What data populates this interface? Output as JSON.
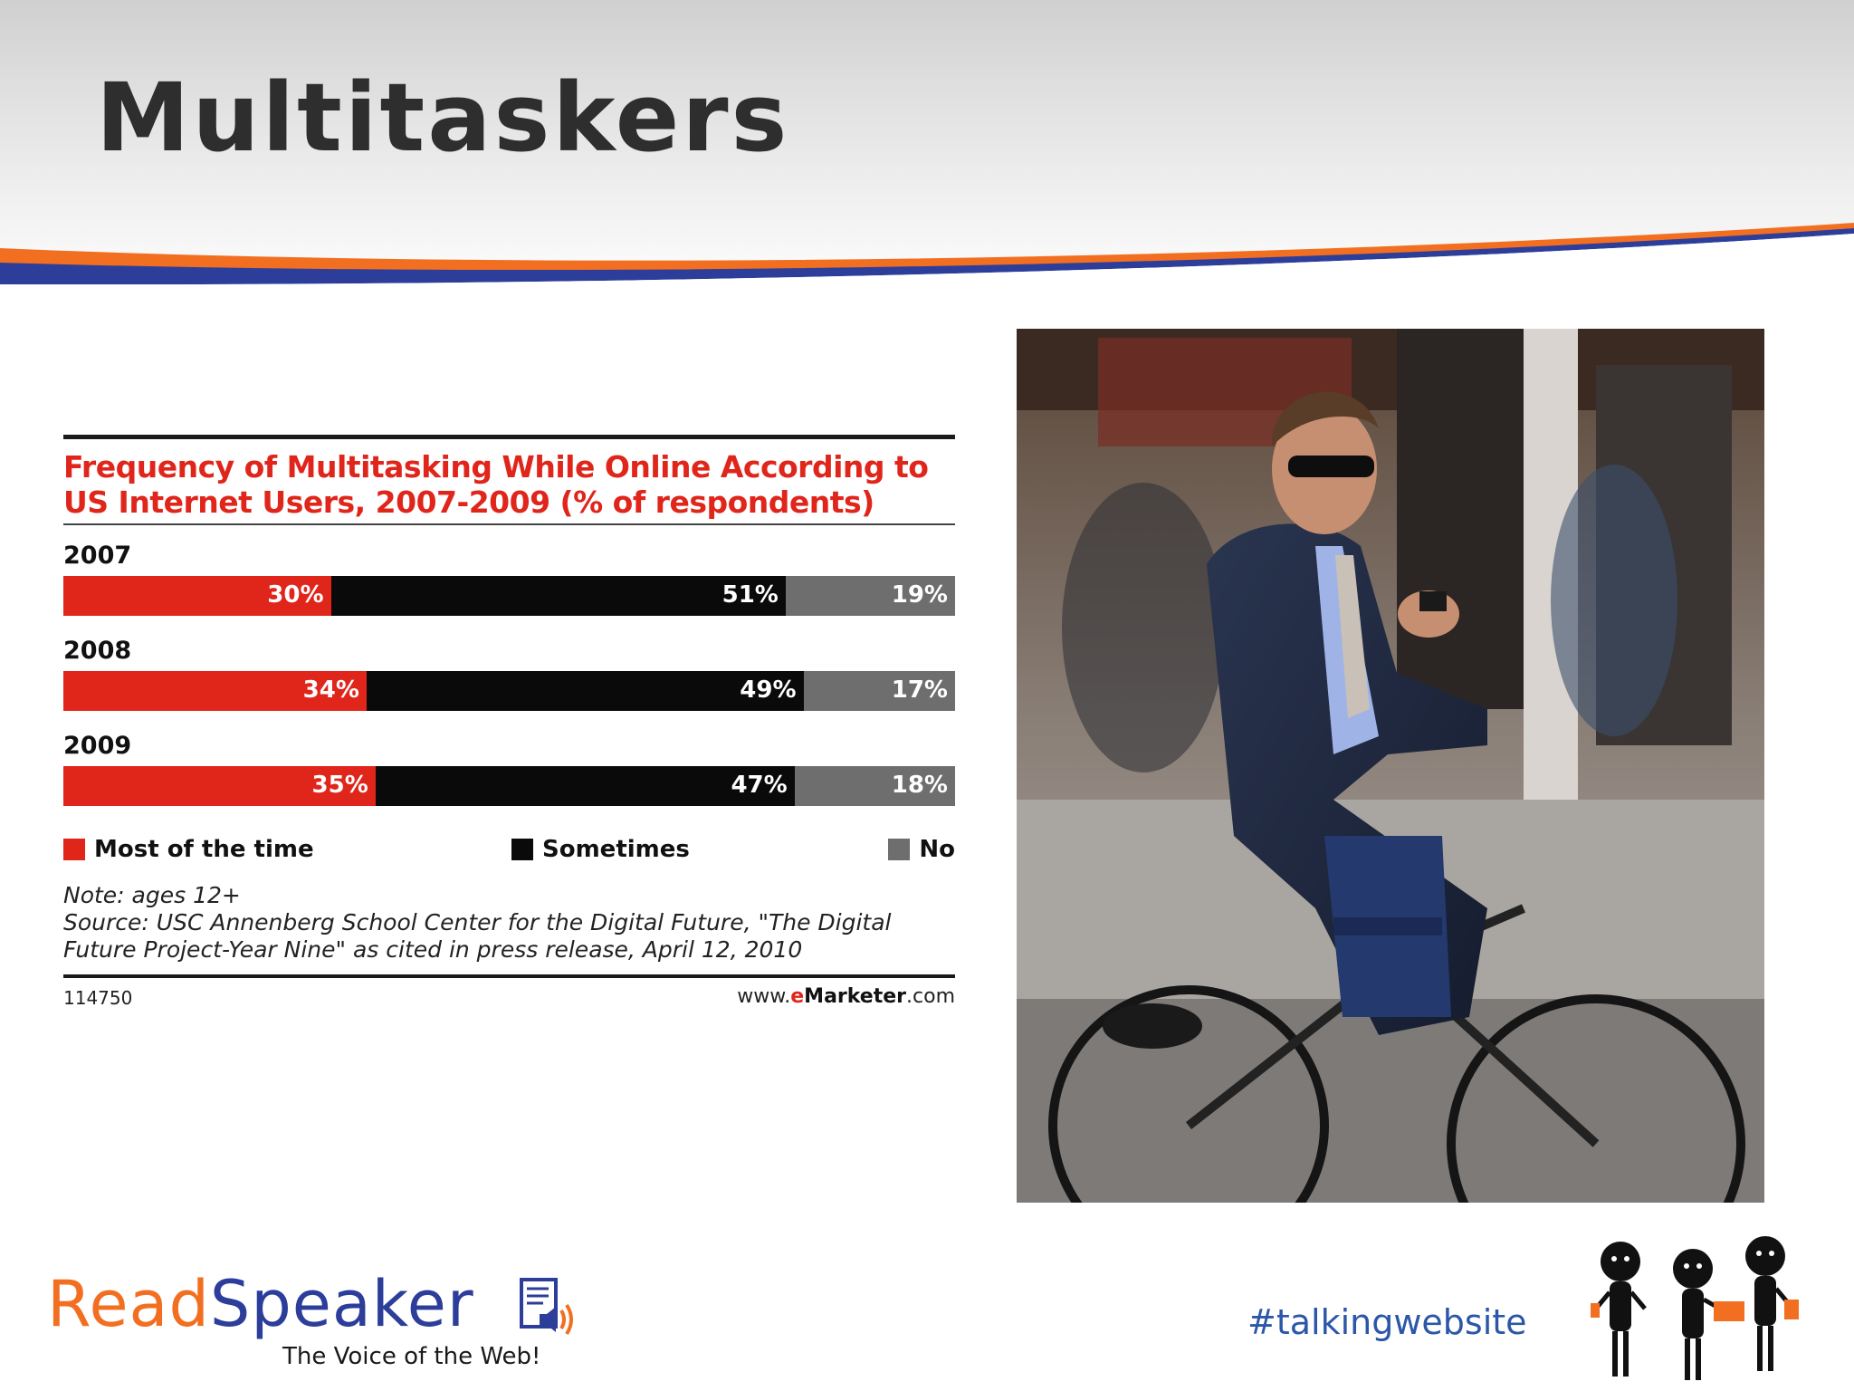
{
  "slide": {
    "title": "Multitaskers"
  },
  "colors": {
    "orange_accent": "#f26f21",
    "blue_accent": "#2c3e9a",
    "most": "#e0251b",
    "sometimes": "#0a0a0a",
    "no": "#6e6e6e"
  },
  "chart_data": {
    "type": "bar",
    "orientation": "horizontal-stacked-100",
    "title": "Frequency of Multitasking While Online According to US Internet Users, 2007-2009 (% of respondents)",
    "categories": [
      "2007",
      "2008",
      "2009"
    ],
    "series": [
      {
        "name": "Most of the time",
        "values": [
          30,
          34,
          35
        ],
        "labels": [
          "30%",
          "34%",
          "35%"
        ],
        "color": "#e0251b"
      },
      {
        "name": "Sometimes",
        "values": [
          51,
          49,
          47
        ],
        "labels": [
          "51%",
          "49%",
          "47%"
        ],
        "color": "#0a0a0a"
      },
      {
        "name": "No",
        "values": [
          19,
          17,
          18
        ],
        "labels": [
          "19%",
          "17%",
          "18%"
        ],
        "color": "#6e6e6e"
      }
    ],
    "xlim": [
      0,
      100
    ],
    "legend_position": "bottom",
    "note": "Note: ages 12+",
    "source": "Source: USC Annenberg School Center for the Digital Future, \"The Digital Future Project-Year Nine\" as cited in press release, April 12, 2010",
    "chart_id": "114750",
    "site_prefix": "www.",
    "site_brand": "eMarketer",
    "site_suffix": ".com"
  },
  "logo": {
    "read": "Read",
    "speaker": "Speaker",
    "tagline": "The Voice of the Web!",
    "icon": "document-speaker-icon"
  },
  "footer": {
    "hashtag": "#talkingwebsite"
  }
}
